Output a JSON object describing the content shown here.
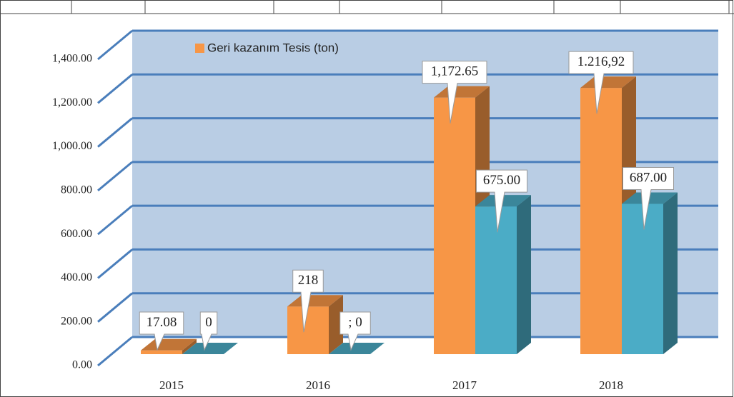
{
  "chart_data": {
    "type": "bar3d",
    "categories": [
      "2015",
      "2016",
      "2017",
      "2018"
    ],
    "series": [
      {
        "name": "Geri kazanım Tesis (ton)",
        "color": "#f79646",
        "values": [
          17.08,
          218,
          1172.65,
          1216.92
        ],
        "value_labels": [
          "17.08",
          "218",
          "1,172.65",
          "1.216,92"
        ]
      },
      {
        "color": "#4bacc6",
        "values": [
          0,
          0,
          675,
          687
        ],
        "value_labels": [
          "0",
          "; 0",
          "675.00",
          "687.00"
        ]
      }
    ],
    "ylim": [
      0,
      1400
    ],
    "yticks": [
      {
        "value": 0,
        "label": "0.00"
      },
      {
        "value": 200,
        "label": "200.00"
      },
      {
        "value": 400,
        "label": "400.00"
      },
      {
        "value": 600,
        "label": "600.00"
      },
      {
        "value": 800,
        "label": "800.00"
      },
      {
        "value": 1000,
        "label": "1,000.00"
      },
      {
        "value": 1200,
        "label": "1,200.00"
      },
      {
        "value": 1400,
        "label": "1,400.00"
      }
    ],
    "grid": true
  }
}
